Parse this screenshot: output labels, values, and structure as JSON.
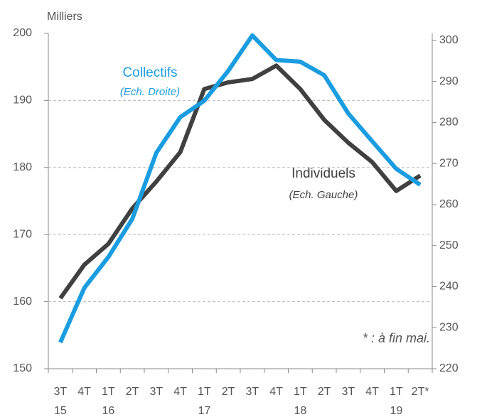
{
  "chart_data": {
    "type": "line",
    "unit_label": "Milliers",
    "footnote": "* : à fin mai.",
    "categories": [
      "3T\n15",
      "4T",
      "1T\n16",
      "2T",
      "3T",
      "4T",
      "1T\n17",
      "2T",
      "3T",
      "4T",
      "1T\n18",
      "2T",
      "3T",
      "4T",
      "1T\n19",
      "2T*"
    ],
    "series": [
      {
        "name": "Individuels",
        "note": "(Ech. Gauche)",
        "color": "#404040",
        "axis": "y",
        "values": [
          160.5,
          165.5,
          168.6,
          173.9,
          177.9,
          182.3,
          191.7,
          192.7,
          193.2,
          195.2,
          191.7,
          187.1,
          183.7,
          180.8,
          176.5,
          178.8
        ]
      },
      {
        "name": "Collectifs",
        "note": "(Ech. Droite)",
        "color": "#1a9de0",
        "axis": "y2",
        "values": [
          226.4,
          239.7,
          247.2,
          256.5,
          272.6,
          281.3,
          285.3,
          292.6,
          301.2,
          295.2,
          294.8,
          291.5,
          282.2,
          275.4,
          268.7,
          264.8
        ]
      }
    ],
    "ylim": [
      150,
      200
    ],
    "yticks": [
      150,
      160,
      170,
      180,
      190,
      200
    ],
    "y2lim": [
      220,
      301.7
    ],
    "y2ticks": [
      220,
      230,
      240,
      250,
      260,
      270,
      280,
      290,
      300
    ],
    "grid": true
  }
}
